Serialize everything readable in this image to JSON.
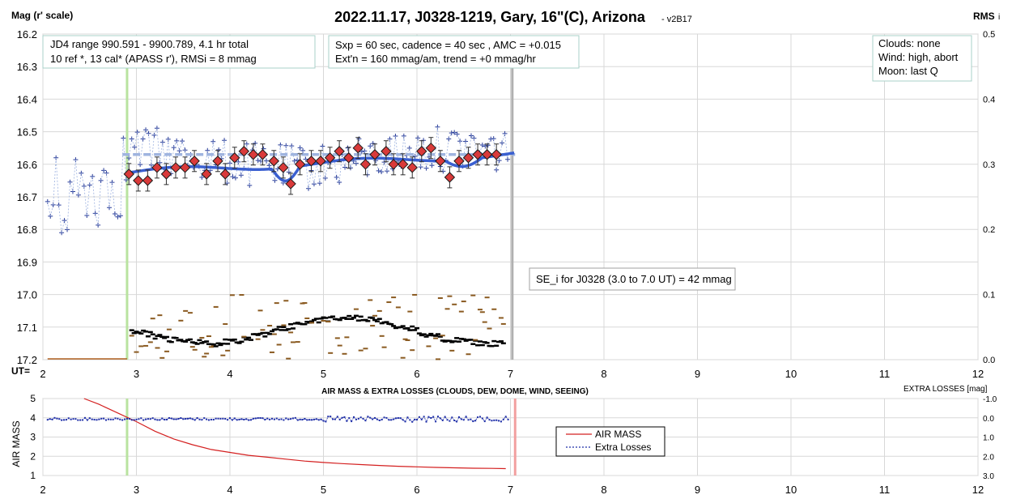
{
  "chart_data": [
    {
      "type": "scatter",
      "title": "2022.11.17, J0328-1219, Gary, 16\"(C), Arizona",
      "version": "- v2B17",
      "ylabel_left": "Mag (r' scale)",
      "ylabel_right": "RMS",
      "ylabel_right_sub": "i",
      "xlabel": "UT=",
      "xlim": [
        2,
        12
      ],
      "ylim": [
        16.2,
        17.2
      ],
      "ylim_right": [
        0.0,
        0.5
      ],
      "x_ticks": [
        "2",
        "3",
        "4",
        "5",
        "6",
        "7",
        "8",
        "9",
        "10",
        "11",
        "12"
      ],
      "y_ticks": [
        "16.2",
        "16.3",
        "16.4",
        "16.5",
        "16.6",
        "16.7",
        "16.8",
        "16.9",
        "17.0",
        "17.1",
        "17.2"
      ],
      "y_right_ticks": [
        "0.5",
        "0.4",
        "0.3",
        "0.2",
        "0.1",
        "0.0"
      ],
      "grid": true,
      "info_boxes": {
        "left": [
          "JD4 range 990.591 - 9900.789, 4.1 hr total",
          "10 ref *, 13 cal*  (APASS r'), RMSi = 8 mmag"
        ],
        "middle": [
          "Sxp = 60 sec, cadence = 40 sec , AMC = +0.015",
          "Ext'n = 160 mmag/am, trend = +0 mmag/hr"
        ],
        "right": [
          "Clouds: none",
          "Wind: high, abort",
          "Moon: last Q"
        ],
        "se": "SE_i for J0328 (3.0 to 7.0 UT) = 42 mmag"
      },
      "vertical_markers": [
        {
          "x": 2.9,
          "color": "#b9e3a0"
        },
        {
          "x": 7.02,
          "color": "#b0b0b0"
        }
      ],
      "reference_level": {
        "y": 16.57,
        "x_range": [
          2.85,
          7.05
        ],
        "color": "#9fb4df"
      },
      "series": [
        {
          "name": "binned",
          "color": "#d93a3a",
          "x": [
            2.92,
            3.02,
            3.12,
            3.22,
            3.32,
            3.42,
            3.52,
            3.62,
            3.75,
            3.87,
            3.95,
            4.05,
            4.15,
            4.25,
            4.35,
            4.47,
            4.57,
            4.65,
            4.75,
            4.87,
            4.97,
            5.07,
            5.17,
            5.27,
            5.37,
            5.45,
            5.55,
            5.67,
            5.75,
            5.85,
            5.95,
            6.05,
            6.15,
            6.25,
            6.35,
            6.45,
            6.55,
            6.65,
            6.75,
            6.85
          ],
          "y": [
            16.63,
            16.65,
            16.65,
            16.61,
            16.63,
            16.61,
            16.61,
            16.59,
            16.63,
            16.59,
            16.63,
            16.58,
            16.56,
            16.57,
            16.57,
            16.59,
            16.61,
            16.66,
            16.6,
            16.59,
            16.59,
            16.58,
            16.56,
            16.58,
            16.55,
            16.6,
            16.57,
            16.56,
            16.6,
            16.6,
            16.61,
            16.56,
            16.55,
            16.59,
            16.64,
            16.59,
            16.58,
            16.57,
            16.57,
            16.57
          ]
        }
      ]
    },
    {
      "type": "line",
      "title": "AIR MASS & EXTRA LOSSES (CLOUDS, DEW, DOME, WIND, SEEING)",
      "ylabel_left": "AIR MASS",
      "ylabel_right": "EXTRA LOSSES [mag]",
      "xlim": [
        2,
        12
      ],
      "ylim": [
        1,
        5
      ],
      "ylim_right": [
        -1.0,
        3.0
      ],
      "x_ticks": [
        "2",
        "3",
        "4",
        "5",
        "6",
        "7",
        "8",
        "9",
        "10",
        "11",
        "12"
      ],
      "y_ticks": [
        "5",
        "4",
        "3",
        "2",
        "1"
      ],
      "y_right_ticks": [
        "-1.0",
        "0.0",
        "1.0",
        "2.0",
        "3.0"
      ],
      "grid": true,
      "vertical_markers": [
        {
          "x": 2.9,
          "color": "#b9e3a0"
        },
        {
          "x": 7.05,
          "color": "#f2a0a0"
        }
      ],
      "legend": {
        "items": [
          "AIR MASS",
          "Extra Losses"
        ],
        "placement": "center-right"
      },
      "series": [
        {
          "name": "AIR MASS",
          "color": "#d42020",
          "x": [
            2.44,
            2.6,
            2.8,
            3.0,
            3.2,
            3.4,
            3.6,
            3.8,
            4.0,
            4.2,
            4.4,
            4.6,
            4.8,
            5.0,
            5.2,
            5.4,
            5.6,
            5.8,
            6.0,
            6.2,
            6.4,
            6.6,
            6.8,
            6.95
          ],
          "y": [
            5.0,
            4.7,
            4.25,
            3.8,
            3.3,
            2.9,
            2.6,
            2.35,
            2.2,
            2.05,
            1.95,
            1.85,
            1.75,
            1.68,
            1.62,
            1.57,
            1.52,
            1.48,
            1.45,
            1.42,
            1.4,
            1.38,
            1.37,
            1.36
          ]
        },
        {
          "name": "Extra Losses",
          "color": "#1f2fa8",
          "x": [
            2.05,
            7.0
          ],
          "y": [
            0.05,
            0.1
          ]
        }
      ]
    }
  ]
}
